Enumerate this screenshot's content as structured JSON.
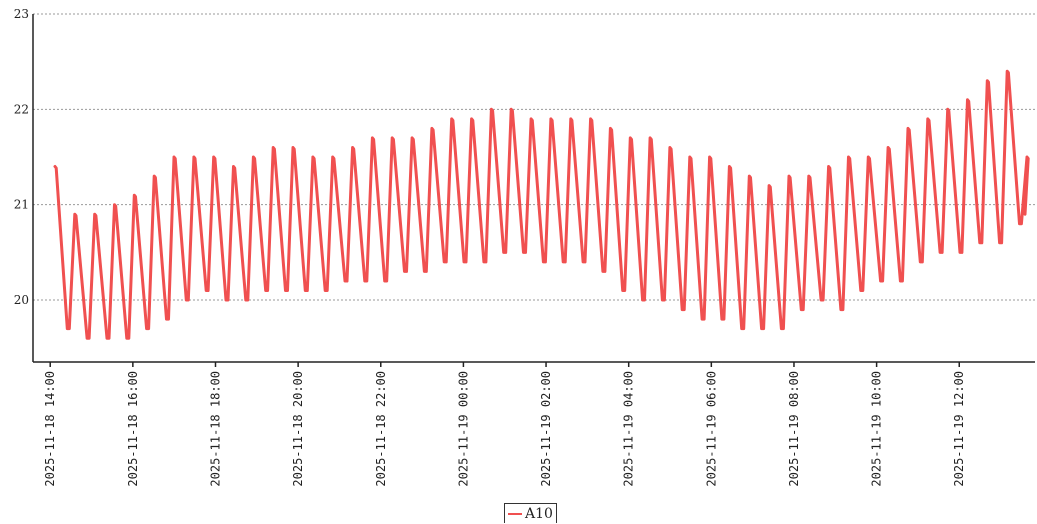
{
  "chart_data": {
    "type": "line",
    "title": "",
    "xlabel": "",
    "ylabel": "",
    "ylim": [
      19.35,
      23
    ],
    "y_ticks": [
      "20",
      "21",
      "22",
      "23"
    ],
    "x_tick_labels": [
      "2025-11-18 14:00",
      "2025-11-18 16:00",
      "2025-11-18 18:00",
      "2025-11-18 20:00",
      "2025-11-18 22:00",
      "2025-11-19 00:00",
      "2025-11-19 02:00",
      "2025-11-19 04:00",
      "2025-11-19 06:00",
      "2025-11-19 08:00",
      "2025-11-19 10:00",
      "2025-11-19 12:00"
    ],
    "x_range": [
      "2025-11-18 13:35",
      "2025-11-19 13:50"
    ],
    "grid": "horizontal dashed",
    "legend": "bottom-center",
    "series": [
      {
        "name": "A10",
        "color": "#f05050",
        "peaks": [
          21.4,
          20.9,
          20.9,
          21.0,
          21.1,
          21.3,
          21.5,
          21.5,
          21.5,
          21.4,
          21.5,
          21.6,
          21.6,
          21.5,
          21.5,
          21.6,
          21.7,
          21.7,
          21.7,
          21.8,
          21.9,
          21.9,
          22.0,
          22.0,
          21.9,
          21.9,
          21.9,
          21.9,
          21.8,
          21.7,
          21.7,
          21.6,
          21.5,
          21.5,
          21.4,
          21.3,
          21.2,
          21.3,
          21.3,
          21.4,
          21.5,
          21.5,
          21.6,
          21.8,
          21.9,
          22.0,
          22.1,
          22.3,
          22.4,
          21.5
        ],
        "troughs": [
          19.7,
          19.6,
          19.6,
          19.6,
          19.7,
          19.8,
          20.0,
          20.1,
          20.0,
          20.0,
          20.1,
          20.1,
          20.1,
          20.1,
          20.2,
          20.2,
          20.2,
          20.3,
          20.3,
          20.4,
          20.4,
          20.4,
          20.5,
          20.5,
          20.4,
          20.4,
          20.4,
          20.3,
          20.1,
          20.0,
          20.0,
          19.9,
          19.8,
          19.8,
          19.7,
          19.7,
          19.7,
          19.9,
          20.0,
          19.9,
          20.1,
          20.2,
          20.2,
          20.4,
          20.5,
          20.5,
          20.6,
          20.6,
          20.8,
          20.9
        ]
      }
    ]
  }
}
